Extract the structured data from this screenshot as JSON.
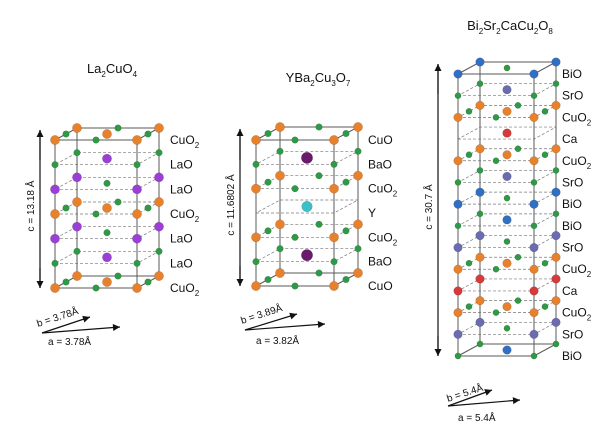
{
  "structures": [
    {
      "id": "la2cuo4",
      "title": {
        "parts": [
          {
            "t": "La"
          },
          {
            "t": "2",
            "sub": true
          },
          {
            "t": "CuO"
          },
          {
            "t": "4",
            "sub": true
          }
        ]
      },
      "c_label": "c = 13.18 Å",
      "b_label": "b = 3.78Å",
      "a_label": "a = 3.78Å",
      "layers": [
        {
          "label": [
            {
              "t": "CuO"
            },
            {
              "t": "2",
              "sub": true
            }
          ],
          "corner": "cu",
          "center": "cu",
          "edge": "o"
        },
        {
          "label": [
            {
              "t": "LaO"
            }
          ],
          "corner": "o",
          "center": "la",
          "edge": "none"
        },
        {
          "label": [
            {
              "t": "LaO"
            }
          ],
          "corner": "la",
          "center": "o",
          "edge": "none"
        },
        {
          "label": [
            {
              "t": "CuO"
            },
            {
              "t": "2",
              "sub": true
            }
          ],
          "corner": "cu",
          "center": "cu",
          "edge": "o"
        },
        {
          "label": [
            {
              "t": "LaO"
            }
          ],
          "corner": "la",
          "center": "o",
          "edge": "none"
        },
        {
          "label": [
            {
              "t": "LaO"
            }
          ],
          "corner": "o",
          "center": "la",
          "edge": "none"
        },
        {
          "label": [
            {
              "t": "CuO"
            },
            {
              "t": "2",
              "sub": true
            }
          ],
          "corner": "cu",
          "center": "cu",
          "edge": "o"
        }
      ]
    },
    {
      "id": "ybco",
      "title": {
        "parts": [
          {
            "t": "YBa"
          },
          {
            "t": "2",
            "sub": true
          },
          {
            "t": "Cu"
          },
          {
            "t": "3",
            "sub": true
          },
          {
            "t": "O"
          },
          {
            "t": "7",
            "sub": true
          }
        ]
      },
      "c_label": "c = 11.6802 Å",
      "b_label": "b = 3.89Å",
      "a_label": "a = 3.82Å",
      "layers": [
        {
          "label": [
            {
              "t": "CuO"
            }
          ],
          "corner": "cu",
          "center": "none",
          "edge": "o"
        },
        {
          "label": [
            {
              "t": "BaO"
            }
          ],
          "corner": "o",
          "center": "ba",
          "edge": "none"
        },
        {
          "label": [
            {
              "t": "CuO"
            },
            {
              "t": "2",
              "sub": true
            }
          ],
          "corner": "cu",
          "center": "none",
          "edge": "o"
        },
        {
          "label": [
            {
              "t": "Y"
            }
          ],
          "corner": "none",
          "center": "y",
          "edge": "none"
        },
        {
          "label": [
            {
              "t": "CuO"
            },
            {
              "t": "2",
              "sub": true
            }
          ],
          "corner": "cu",
          "center": "none",
          "edge": "o"
        },
        {
          "label": [
            {
              "t": "BaO"
            }
          ],
          "corner": "o",
          "center": "ba",
          "edge": "none"
        },
        {
          "label": [
            {
              "t": "CuO"
            }
          ],
          "corner": "cu",
          "center": "none",
          "edge": "o"
        }
      ]
    },
    {
      "id": "bscco",
      "title": {
        "parts": [
          {
            "t": "Bi"
          },
          {
            "t": "2",
            "sub": true
          },
          {
            "t": "Sr"
          },
          {
            "t": "2",
            "sub": true
          },
          {
            "t": "CaCu"
          },
          {
            "t": "2",
            "sub": true
          },
          {
            "t": "O"
          },
          {
            "t": "8",
            "sub": true
          }
        ]
      },
      "c_label": "c = 30.7 Å",
      "b_label": "b = 5.4Å",
      "a_label": "a = 5.4Å",
      "layers": [
        {
          "label": [
            {
              "t": "BiO"
            }
          ],
          "corner": "bi",
          "center": "o",
          "edge": "none"
        },
        {
          "label": [
            {
              "t": "SrO"
            }
          ],
          "corner": "o",
          "center": "sr",
          "edge": "none"
        },
        {
          "label": [
            {
              "t": "CuO"
            },
            {
              "t": "2",
              "sub": true
            }
          ],
          "corner": "cu",
          "center": "cu",
          "edge": "o"
        },
        {
          "label": [
            {
              "t": "Ca"
            }
          ],
          "corner": "none",
          "center": "ca",
          "edge": "none"
        },
        {
          "label": [
            {
              "t": "CuO"
            },
            {
              "t": "2",
              "sub": true
            }
          ],
          "corner": "cu",
          "center": "cu",
          "edge": "o"
        },
        {
          "label": [
            {
              "t": "SrO"
            }
          ],
          "corner": "o",
          "center": "sr",
          "edge": "none"
        },
        {
          "label": [
            {
              "t": "BiO"
            }
          ],
          "corner": "bi",
          "center": "o",
          "edge": "none"
        },
        {
          "label": [
            {
              "t": "BiO"
            }
          ],
          "corner": "o",
          "center": "bi",
          "edge": "none"
        },
        {
          "label": [
            {
              "t": "SrO"
            }
          ],
          "corner": "sr",
          "center": "o",
          "edge": "none"
        },
        {
          "label": [
            {
              "t": "CuO"
            },
            {
              "t": "2",
              "sub": true
            }
          ],
          "corner": "cu",
          "center": "cu",
          "edge": "o"
        },
        {
          "label": [
            {
              "t": "Ca"
            }
          ],
          "corner": "ca",
          "center": "none",
          "edge": "none"
        },
        {
          "label": [
            {
              "t": "CuO"
            },
            {
              "t": "2",
              "sub": true
            }
          ],
          "corner": "cu",
          "center": "cu",
          "edge": "o"
        },
        {
          "label": [
            {
              "t": "SrO"
            }
          ],
          "corner": "sr",
          "center": "o",
          "edge": "none"
        },
        {
          "label": [
            {
              "t": "BiO"
            }
          ],
          "corner": "o",
          "center": "bi",
          "edge": "none"
        }
      ]
    }
  ],
  "atom_colors": {
    "cu": "#e8812b",
    "o": "#2e9a45",
    "la": "#9b3fd6",
    "ba": "#2e9a45",
    "y": "#3cc0c8",
    "bi": "#2f6fc4",
    "sr": "#6b6bb0",
    "ca": "#d63a3a",
    "edge_line": "#5a5a5a",
    "dash_line": "#777777",
    "arrow": "#111111"
  },
  "ybco_special": {
    "ba_color": "#6a1a6a"
  }
}
